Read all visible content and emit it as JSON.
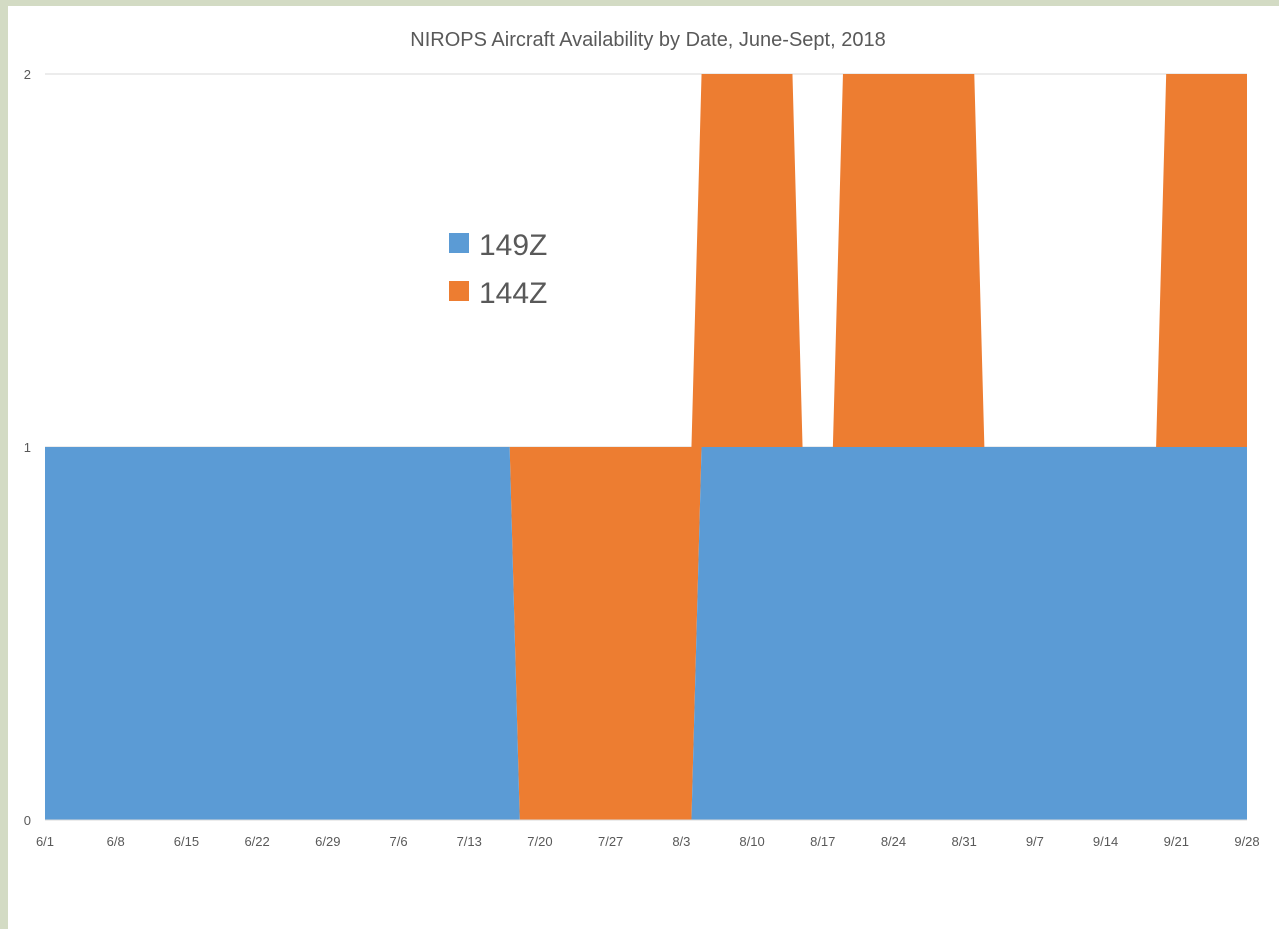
{
  "chart_data": {
    "type": "area",
    "stacked": true,
    "title": "NIROPS Aircraft Availability by Date, June-Sept, 2018",
    "xlabel": "",
    "ylabel": "",
    "x_ticks": [
      "6/1",
      "6/8",
      "6/15",
      "6/22",
      "6/29",
      "7/6",
      "7/13",
      "7/20",
      "7/27",
      "8/3",
      "8/10",
      "8/17",
      "8/24",
      "8/31",
      "9/7",
      "9/14",
      "9/21",
      "9/28"
    ],
    "y_ticks": [
      "0",
      "1",
      "2"
    ],
    "xlim": [
      "6/1",
      "9/28"
    ],
    "ylim": [
      0,
      2
    ],
    "grid": "horizontal",
    "legend_position": "upper-left-inside",
    "series": [
      {
        "name": "149Z",
        "color": "#5b9bd5",
        "points": [
          {
            "x": "6/1",
            "y": 1
          },
          {
            "x": "7/17",
            "y": 1
          },
          {
            "x": "7/18",
            "y": 0
          },
          {
            "x": "8/4",
            "y": 0
          },
          {
            "x": "8/5",
            "y": 1
          },
          {
            "x": "9/28",
            "y": 1
          }
        ]
      },
      {
        "name": "144Z",
        "color": "#ed7d31",
        "points": [
          {
            "x": "6/1",
            "y": 0
          },
          {
            "x": "7/17",
            "y": 0
          },
          {
            "x": "7/18",
            "y": 1
          },
          {
            "x": "8/4",
            "y": 1
          },
          {
            "x": "8/5",
            "y": 1
          },
          {
            "x": "8/14",
            "y": 1
          },
          {
            "x": "8/15",
            "y": 0
          },
          {
            "x": "8/18",
            "y": 0
          },
          {
            "x": "8/19",
            "y": 1
          },
          {
            "x": "9/1",
            "y": 1
          },
          {
            "x": "9/2",
            "y": 0
          },
          {
            "x": "9/19",
            "y": 0
          },
          {
            "x": "9/20",
            "y": 1
          },
          {
            "x": "9/28",
            "y": 1
          }
        ]
      }
    ]
  }
}
